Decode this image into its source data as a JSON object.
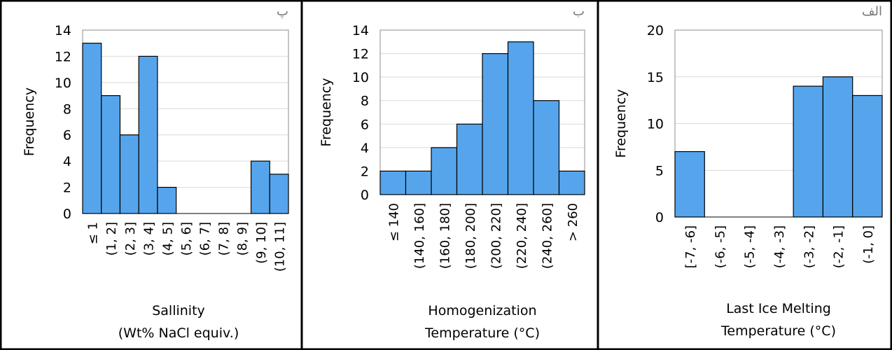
{
  "chart_data": [
    {
      "type": "bar",
      "panel_tag": "پ",
      "ylabel": "Frequency",
      "xlabel_lines": [
        "Sallinity",
        "(Wt% NaCl equiv.)"
      ],
      "ylim": [
        0,
        14
      ],
      "yticks": [
        0,
        2,
        4,
        6,
        8,
        10,
        12,
        14
      ],
      "categories": [
        "≤ 1",
        "(1, 2]",
        "(2, 3]",
        "(3, 4]",
        "(4, 5]",
        "(5, 6]",
        "(6, 7]",
        "(7, 8]",
        "(8, 9]",
        "(9, 10]",
        "(10, 11]"
      ],
      "values": [
        13,
        9,
        6,
        12,
        2,
        0,
        0,
        0,
        0,
        4,
        3
      ],
      "grid": true
    },
    {
      "type": "bar",
      "panel_tag": "ب",
      "ylabel": "Frequency",
      "xlabel_lines": [
        "Homogenization",
        "Temperature (°C)"
      ],
      "ylim": [
        0,
        14
      ],
      "yticks": [
        0,
        2,
        4,
        6,
        8,
        10,
        12,
        14
      ],
      "categories": [
        "≤ 140",
        "(140, 160]",
        "(160, 180]",
        "(180, 200]",
        "(200, 220]",
        "(220, 240]",
        "(240, 260]",
        "> 260"
      ],
      "values": [
        2,
        2,
        4,
        6,
        12,
        13,
        8,
        2
      ],
      "grid": true
    },
    {
      "type": "bar",
      "panel_tag": "الف",
      "ylabel": "Frequency",
      "xlabel_lines": [
        "Last Ice Melting",
        "Temperature (°C)"
      ],
      "ylim": [
        0,
        20
      ],
      "yticks": [
        0,
        5,
        10,
        15,
        20
      ],
      "categories": [
        "[-7, -6]",
        "(-6, -5]",
        "(-5, -4]",
        "(-4, -3]",
        "(-3, -2]",
        "(-2, -1]",
        "(-1, 0]"
      ],
      "values": [
        7,
        0,
        0,
        0,
        14,
        15,
        13
      ],
      "grid": true
    }
  ],
  "colors": {
    "bar_fill": "#56a5ec",
    "bar_edge": "#000000",
    "grid": "#d9d9d9"
  }
}
